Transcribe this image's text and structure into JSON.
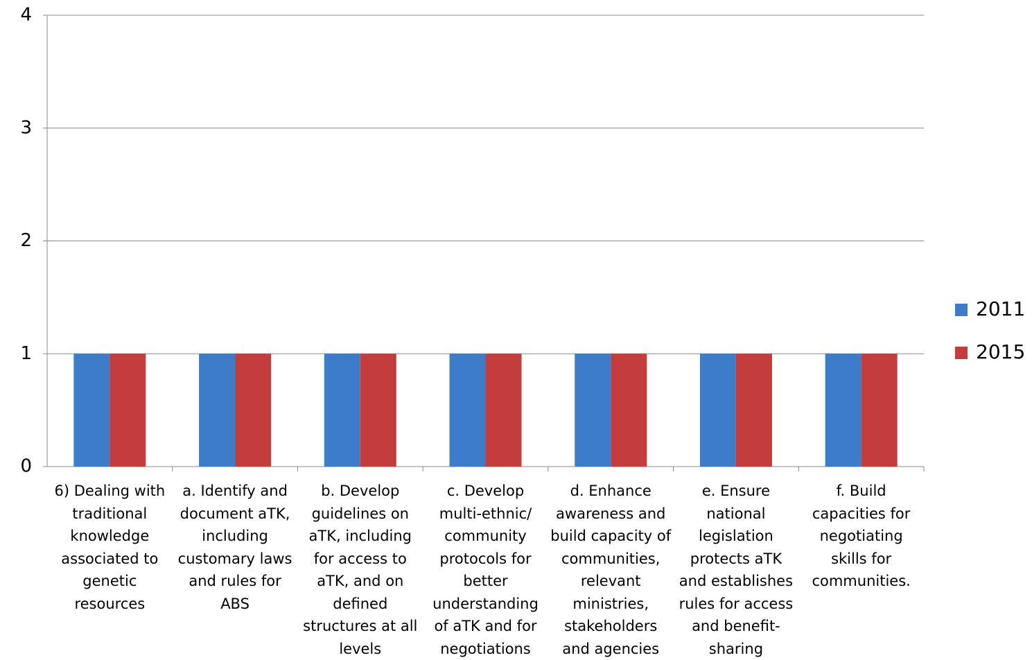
{
  "chart_data": {
    "type": "bar",
    "categories": [
      "6) Dealing with traditional knowledge associated to genetic resources",
      "a. Identify and document aTK, including customary laws and rules for ABS",
      "b. Develop guidelines on aTK, including for access to aTK, and on defined structures at all levels",
      "c. Develop multi-ethnic/ community protocols for better understanding of aTK and for negotiations",
      "d. Enhance awareness and build capacity of communities, relevant ministries, stakeholders and agencies",
      "e. Ensure national legislation protects aTK and establishes rules for access and benefit-sharing",
      "f. Build capacities for negotiating skills for communities."
    ],
    "series": [
      {
        "name": "2011",
        "color": "#3d7cc9",
        "values": [
          1,
          1,
          1,
          1,
          1,
          1,
          1
        ]
      },
      {
        "name": "2015",
        "color": "#c43c3c",
        "values": [
          1,
          1,
          1,
          1,
          1,
          1,
          1
        ]
      }
    ],
    "ylim": [
      0,
      4
    ],
    "yticks": [
      0,
      1,
      2,
      3,
      4
    ],
    "grid": true,
    "legend": "right"
  }
}
